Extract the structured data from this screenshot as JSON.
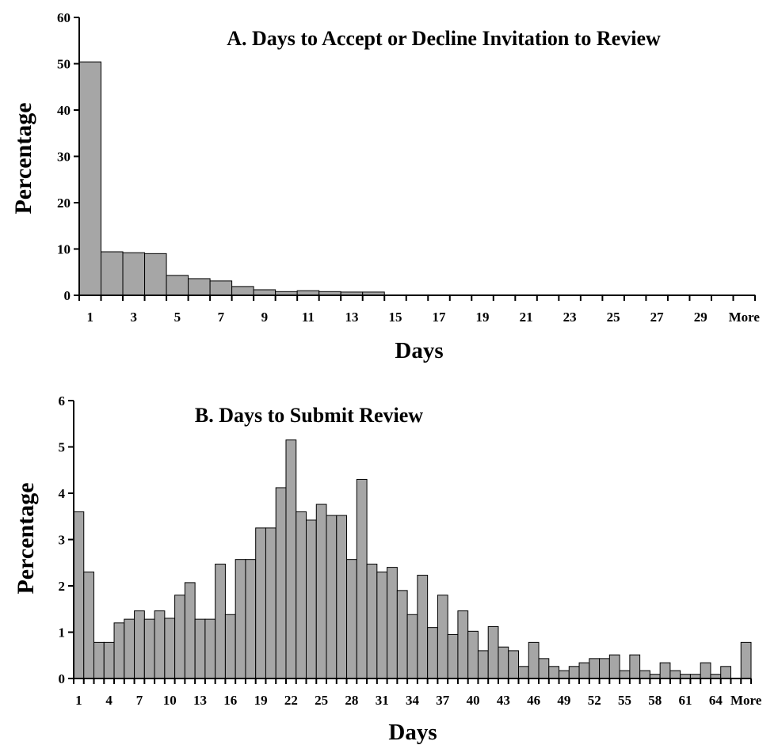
{
  "chart_data": [
    {
      "type": "bar",
      "title": "A. Days to Accept or Decline Invitation to Review",
      "xlabel": "Days",
      "ylabel": "Percentage",
      "ylim": [
        0,
        60
      ],
      "y_ticks": [
        0,
        10,
        20,
        30,
        40,
        50,
        60
      ],
      "categories": [
        "1",
        "2",
        "3",
        "4",
        "5",
        "6",
        "7",
        "8",
        "9",
        "10",
        "11",
        "12",
        "13",
        "14",
        "15",
        "16",
        "17",
        "18",
        "19",
        "20",
        "21",
        "22",
        "23",
        "24",
        "25",
        "26",
        "27",
        "28",
        "29",
        "30",
        "More"
      ],
      "x_tick_labels": [
        "1",
        "3",
        "5",
        "7",
        "9",
        "11",
        "13",
        "15",
        "17",
        "19",
        "21",
        "23",
        "25",
        "27",
        "29",
        "More"
      ],
      "values": [
        50.4,
        9.4,
        9.2,
        9.0,
        4.3,
        3.6,
        3.1,
        1.9,
        1.2,
        0.8,
        1.0,
        0.8,
        0.7,
        0.7,
        0.1,
        0.1,
        0.1,
        0.1,
        0.1,
        0.1,
        0.1,
        0.1,
        0.1,
        0.1,
        0.1,
        0.1,
        0.1,
        0.1,
        0.1,
        0.05,
        0.05
      ],
      "grid": false,
      "legend": "none"
    },
    {
      "type": "bar",
      "title": "B. Days to Submit Review",
      "xlabel": "Days",
      "ylabel": "Percentage",
      "ylim": [
        0,
        6
      ],
      "y_ticks": [
        0,
        1,
        2,
        3,
        4,
        5,
        6
      ],
      "categories": [
        "1",
        "2",
        "3",
        "4",
        "5",
        "6",
        "7",
        "8",
        "9",
        "10",
        "11",
        "12",
        "13",
        "14",
        "15",
        "16",
        "17",
        "18",
        "19",
        "20",
        "21",
        "22",
        "23",
        "24",
        "25",
        "26",
        "27",
        "28",
        "29",
        "30",
        "31",
        "32",
        "33",
        "34",
        "35",
        "36",
        "37",
        "38",
        "39",
        "40",
        "41",
        "42",
        "43",
        "44",
        "45",
        "46",
        "47",
        "48",
        "49",
        "50",
        "51",
        "52",
        "53",
        "54",
        "55",
        "56",
        "57",
        "58",
        "59",
        "60",
        "61",
        "62",
        "63",
        "64",
        "65",
        "66",
        "More"
      ],
      "x_tick_labels": [
        "1",
        "4",
        "7",
        "10",
        "13",
        "16",
        "19",
        "22",
        "25",
        "28",
        "31",
        "34",
        "37",
        "40",
        "43",
        "46",
        "49",
        "52",
        "55",
        "58",
        "61",
        "64",
        "More"
      ],
      "values": [
        3.6,
        2.3,
        0.78,
        0.78,
        1.2,
        1.28,
        1.46,
        1.28,
        1.46,
        1.3,
        1.8,
        2.07,
        1.28,
        1.28,
        2.47,
        1.38,
        2.57,
        2.57,
        3.25,
        3.25,
        4.12,
        5.15,
        3.6,
        3.42,
        3.76,
        3.52,
        3.52,
        2.57,
        4.3,
        2.47,
        2.3,
        2.4,
        1.9,
        1.38,
        2.23,
        1.1,
        1.8,
        0.95,
        1.46,
        1.02,
        0.6,
        1.12,
        0.68,
        0.6,
        0.26,
        0.78,
        0.43,
        0.26,
        0.17,
        0.26,
        0.34,
        0.43,
        0.43,
        0.51,
        0.17,
        0.51,
        0.17,
        0.09,
        0.34,
        0.17,
        0.09,
        0.09,
        0.34,
        0.09,
        0.26,
        0.0,
        0.78
      ],
      "grid": false,
      "legend": "none"
    }
  ]
}
